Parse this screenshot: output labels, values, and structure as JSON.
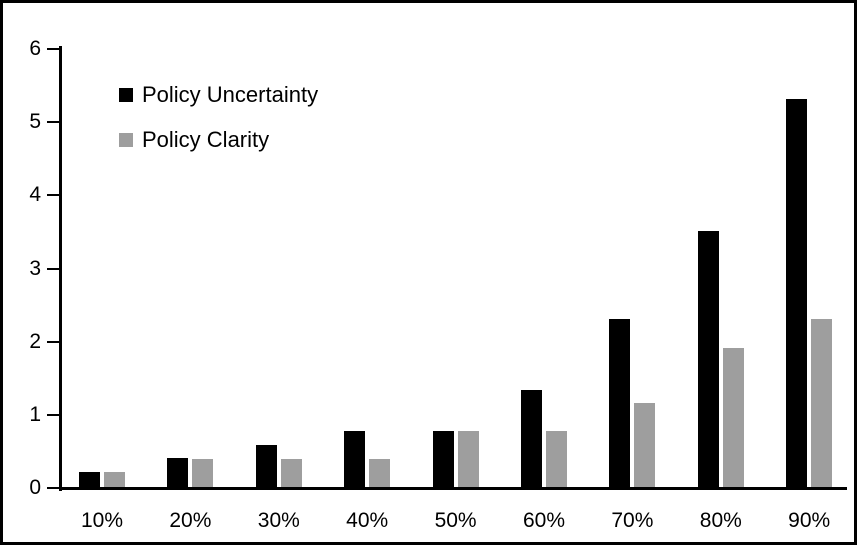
{
  "chart_data": {
    "type": "bar",
    "title": "",
    "xlabel": "",
    "ylabel": "",
    "categories": [
      "10%",
      "20%",
      "30%",
      "40%",
      "50%",
      "60%",
      "70%",
      "80%",
      "90%"
    ],
    "series": [
      {
        "name": "Policy Uncertainty",
        "color": "#000000",
        "values": [
          0.2,
          0.4,
          0.57,
          0.77,
          0.77,
          1.33,
          2.3,
          3.5,
          5.3
        ]
      },
      {
        "name": "Policy Clarity",
        "color": "#9E9E9E",
        "values": [
          0.2,
          0.38,
          0.38,
          0.38,
          0.77,
          0.77,
          1.15,
          1.9,
          2.3
        ]
      }
    ],
    "ylim": [
      0,
      6
    ],
    "yticks": [
      "0",
      "1",
      "2",
      "3",
      "4",
      "5",
      "6"
    ],
    "grid": false,
    "legend_position": "top-left-inside",
    "background_color": "#FFFFFF",
    "border_color": "#000000"
  }
}
